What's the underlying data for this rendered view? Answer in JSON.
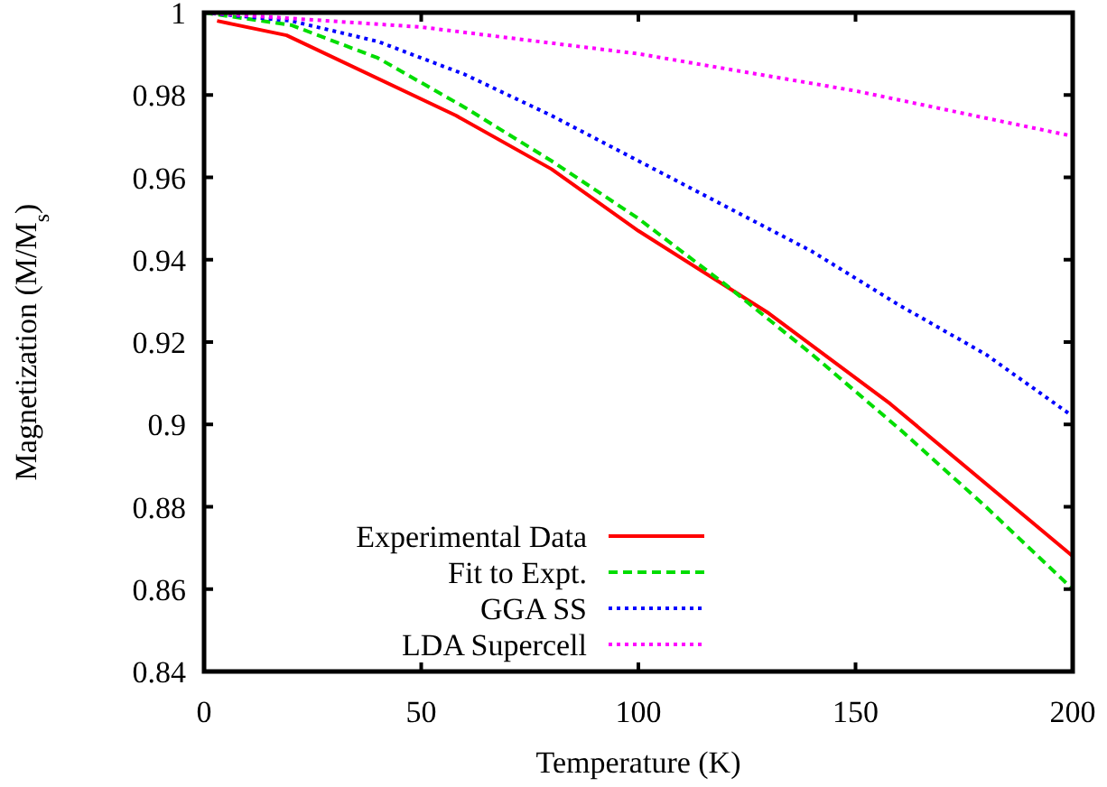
{
  "chart_data": {
    "type": "line",
    "xlabel": "Temperature (K)",
    "ylabel": "Magnetization (M/M$_{s}$)",
    "xlim": [
      0,
      200
    ],
    "ylim": [
      0.84,
      1
    ],
    "xticks": [
      0,
      50,
      100,
      150,
      200
    ],
    "yticks": [
      0.84,
      0.86,
      0.88,
      0.9,
      0.92,
      0.94,
      0.96,
      0.98,
      1
    ],
    "grid": false,
    "legend": "bottom left",
    "series": [
      {
        "name": "Experimental Data",
        "color": "#ff0000",
        "line_style": "solid",
        "x": [
          3,
          19,
          58,
          80,
          100,
          130,
          158,
          200
        ],
        "values": [
          0.998,
          0.9945,
          0.975,
          0.962,
          0.947,
          0.927,
          0.905,
          0.868
        ]
      },
      {
        "name": "Fit to Expt.",
        "color": "#00dd00",
        "line_style": "dashed",
        "x": [
          0,
          20,
          40,
          60,
          80,
          100,
          120,
          140,
          160,
          180,
          200
        ],
        "values": [
          1,
          0.997,
          0.989,
          0.977,
          0.964,
          0.95,
          0.934,
          0.917,
          0.899,
          0.88,
          0.86
        ]
      },
      {
        "name": "GGA SS",
        "color": "#0000ff",
        "line_style": "dotted",
        "x": [
          0,
          20,
          40,
          60,
          80,
          100,
          120,
          140,
          160,
          180,
          200
        ],
        "values": [
          1,
          0.998,
          0.993,
          0.985,
          0.975,
          0.964,
          0.953,
          0.942,
          0.929,
          0.917,
          0.902
        ]
      },
      {
        "name": "LDA Supercell",
        "color": "#ff00ff",
        "line_style": "dotted",
        "x": [
          0,
          50,
          100,
          150,
          200
        ],
        "values": [
          1,
          0.9965,
          0.99,
          0.981,
          0.97
        ]
      }
    ]
  }
}
